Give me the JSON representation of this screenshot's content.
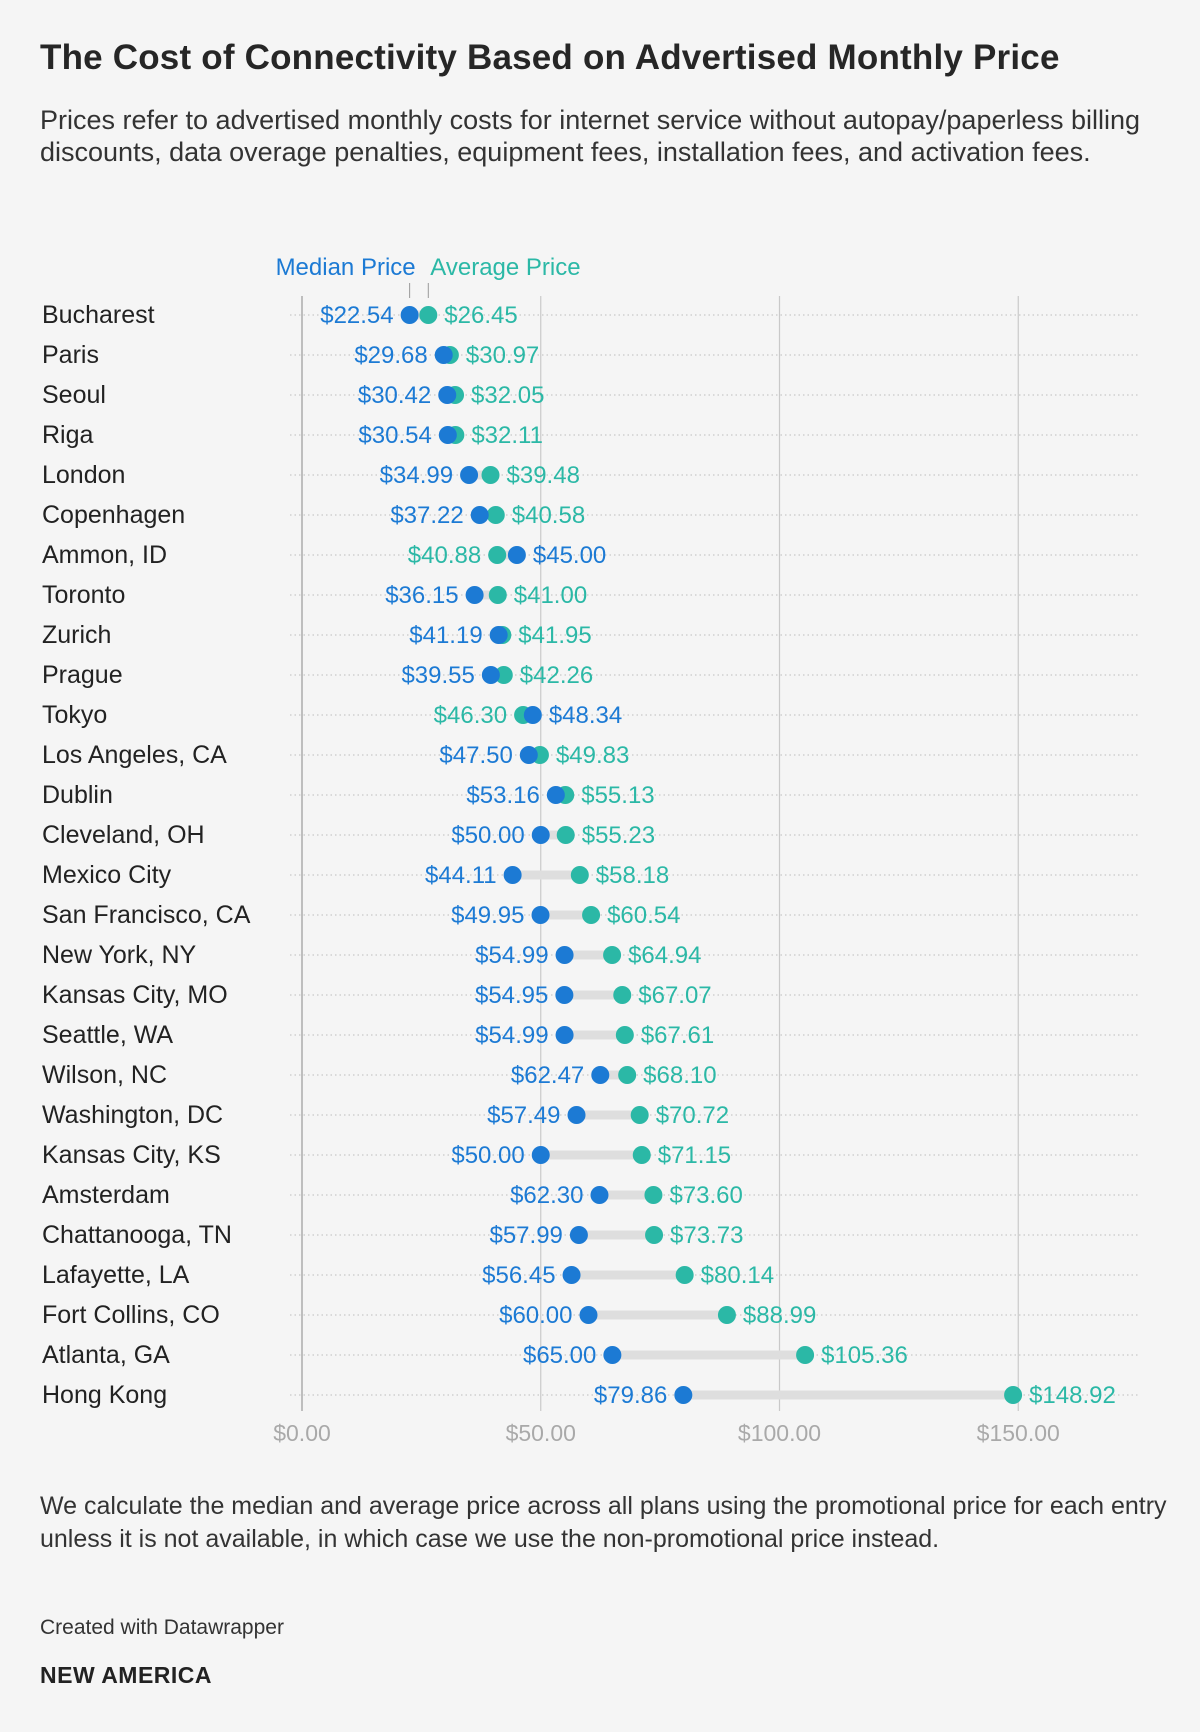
{
  "header": {
    "title": "The Cost of Connectivity Based on Advertised Monthly Price",
    "subtitle": "Prices refer to advertised monthly costs for internet service without autopay/paperless billing discounts, data overage penalties, equipment fees, installation fees, and activation fees."
  },
  "footer": {
    "notes": "We calculate the median and average price across all plans using the promotional price for each entry unless it is not available, in which case we use the non-promotional price instead.",
    "credit": "Created with Datawrapper",
    "brand": "NEW AMERICA"
  },
  "colors": {
    "median": "#1c7ad4",
    "average": "#2bb8a6",
    "connector": "#dedede",
    "grid": "#c9c9c9",
    "axis_label": "#a9a9a9"
  },
  "chart_data": {
    "type": "dot-range",
    "title": "The Cost of Connectivity Based on Advertised Monthly Price",
    "xlim": [
      0,
      175
    ],
    "x_ticks": [
      0,
      50,
      100,
      150
    ],
    "x_tick_labels": [
      "$0.00",
      "$50.00",
      "$100.00",
      "$150.00"
    ],
    "legend": {
      "median_label": "Median Price",
      "average_label": "Average Price",
      "placement": "top"
    },
    "categories": [
      "Bucharest",
      "Paris",
      "Seoul",
      "Riga",
      "London",
      "Copenhagen",
      "Ammon, ID",
      "Toronto",
      "Zurich",
      "Prague",
      "Tokyo",
      "Los Angeles, CA",
      "Dublin",
      "Cleveland, OH",
      "Mexico City",
      "San Francisco, CA",
      "New York, NY",
      "Kansas City, MO",
      "Seattle, WA",
      "Wilson, NC",
      "Washington, DC",
      "Kansas City, KS",
      "Amsterdam",
      "Chattanooga, TN",
      "Lafayette, LA",
      "Fort Collins, CO",
      "Atlanta, GA",
      "Hong Kong"
    ],
    "series": [
      {
        "name": "Median Price",
        "values": [
          22.54,
          29.68,
          30.42,
          30.54,
          34.99,
          37.22,
          45.0,
          36.15,
          41.19,
          39.55,
          48.34,
          47.5,
          53.16,
          50.0,
          44.11,
          49.95,
          54.99,
          54.95,
          54.99,
          62.47,
          57.49,
          50.0,
          62.3,
          57.99,
          56.45,
          60.0,
          65.0,
          79.86
        ],
        "labels": [
          "$22.54",
          "$29.68",
          "$30.42",
          "$30.54",
          "$34.99",
          "$37.22",
          "$45.00",
          "$36.15",
          "$41.19",
          "$39.55",
          "$48.34",
          "$47.50",
          "$53.16",
          "$50.00",
          "$44.11",
          "$49.95",
          "$54.99",
          "$54.95",
          "$54.99",
          "$62.47",
          "$57.49",
          "$50.00",
          "$62.30",
          "$57.99",
          "$56.45",
          "$60.00",
          "$65.00",
          "$79.86"
        ]
      },
      {
        "name": "Average Price",
        "values": [
          26.45,
          30.97,
          32.05,
          32.11,
          39.48,
          40.58,
          40.88,
          41.0,
          41.95,
          42.26,
          46.3,
          49.83,
          55.13,
          55.23,
          58.18,
          60.54,
          64.94,
          67.07,
          67.61,
          68.1,
          70.72,
          71.15,
          73.6,
          73.73,
          80.14,
          88.99,
          105.36,
          148.92
        ],
        "labels": [
          "$26.45",
          "$30.97",
          "$32.05",
          "$32.11",
          "$39.48",
          "$40.58",
          "$40.88",
          "$41.00",
          "$41.95",
          "$42.26",
          "$46.30",
          "$49.83",
          "$55.13",
          "$55.23",
          "$58.18",
          "$60.54",
          "$64.94",
          "$67.07",
          "$67.61",
          "$68.10",
          "$70.72",
          "$71.15",
          "$73.60",
          "$73.73",
          "$80.14",
          "$88.99",
          "$105.36",
          "$148.92"
        ]
      }
    ]
  }
}
